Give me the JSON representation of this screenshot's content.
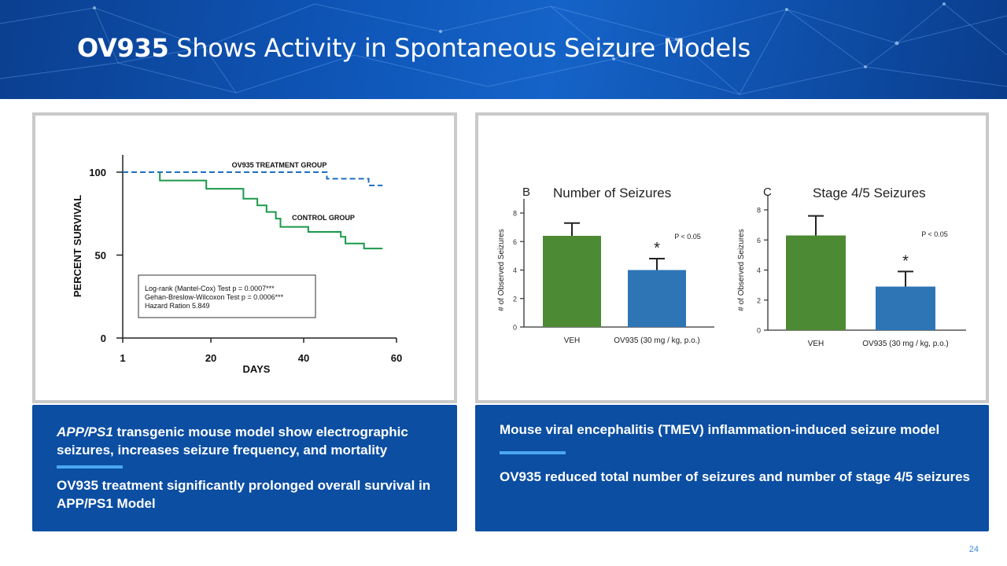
{
  "slide": {
    "title_bold": "OV935",
    "title_rest": " Shows Activity in Spontaneous Seizure Models",
    "page_number": "24"
  },
  "left_box": {
    "line1_italic": "APP/PS1",
    "line1_rest": " transgenic mouse model show electrographic",
    "line2": "seizures, increases seizure frequency, and mortality",
    "line3": "OV935 treatment significantly prolonged overall survival in",
    "line4": "APP/PS1 Model"
  },
  "right_box": {
    "line1": "Mouse viral encephalitis (TMEV) inflammation-induced seizure model",
    "line2": "OV935 reduced total number of seizures and number of stage 4/5 seizures"
  },
  "colors": {
    "treatment": "#1f6fc0",
    "control": "#1a9a4a",
    "veh_bar": "#4d8a34",
    "ov935_bar": "#2e75b6",
    "box_blue": "#0b4ea2",
    "divider": "#4aa8f0"
  },
  "chart_data": [
    {
      "type": "line",
      "subtype": "kaplan-meier step",
      "xlabel": "DAYS",
      "ylabel": "PERCENT SURVIVAL",
      "xticks": [
        "1",
        "20",
        "40",
        "60"
      ],
      "yticks": [
        "0",
        "50",
        "100"
      ],
      "xlim": [
        1,
        60
      ],
      "ylim": [
        0,
        100
      ],
      "series": [
        {
          "name": "OV935 TREATMENT GROUP",
          "style": "dashed",
          "color": "#1f6fc0",
          "points": [
            [
              1,
              100
            ],
            [
              45,
              100
            ],
            [
              45,
              96
            ],
            [
              54,
              96
            ],
            [
              54,
              92
            ],
            [
              57,
              92
            ]
          ]
        },
        {
          "name": "CONTROL GROUP",
          "style": "solid",
          "color": "#1a9a4a",
          "points": [
            [
              9,
              100
            ],
            [
              9,
              95
            ],
            [
              19,
              95
            ],
            [
              19,
              90
            ],
            [
              27,
              90
            ],
            [
              27,
              84
            ],
            [
              30,
              84
            ],
            [
              30,
              80
            ],
            [
              32,
              80
            ],
            [
              32,
              76
            ],
            [
              34,
              76
            ],
            [
              34,
              72
            ],
            [
              35,
              72
            ],
            [
              35,
              67
            ],
            [
              41,
              67
            ],
            [
              41,
              64
            ],
            [
              48,
              64
            ],
            [
              48,
              61
            ],
            [
              49,
              61
            ],
            [
              49,
              57
            ],
            [
              53,
              57
            ],
            [
              53,
              54
            ],
            [
              57,
              54
            ]
          ]
        }
      ],
      "annotation": [
        "Log-rank (Mantel-Cox) Test p = 0.0007***",
        "Gehan-Breslow-Wilcoxon Test p = 0.0006***",
        "Hazard Ration 5.849"
      ]
    },
    {
      "type": "bar",
      "panel_letter": "B",
      "title": "Number of Seizures",
      "ylabel": "# of Observed Seizures",
      "categories": [
        "VEH",
        "OV935 (30 mg / kg, p.o.)"
      ],
      "values": [
        6.4,
        4.0
      ],
      "errors": [
        0.9,
        0.8
      ],
      "significance": [
        "",
        "*"
      ],
      "yticks": [
        "0",
        "2",
        "4",
        "6",
        "8"
      ],
      "ylim": [
        0,
        9
      ],
      "pvalue": "P < 0.05"
    },
    {
      "type": "bar",
      "panel_letter": "C",
      "title": "Stage 4/5 Seizures",
      "ylabel": "# of Observed Seizures",
      "categories": [
        "VEH",
        "OV935 (30 mg / kg, p.o.)"
      ],
      "values": [
        6.3,
        2.9
      ],
      "errors": [
        1.3,
        1.0
      ],
      "significance": [
        "",
        "*"
      ],
      "yticks": [
        "0",
        "2",
        "4",
        "6",
        "8"
      ],
      "ylim": [
        0,
        9
      ],
      "pvalue": "P < 0.05"
    }
  ]
}
